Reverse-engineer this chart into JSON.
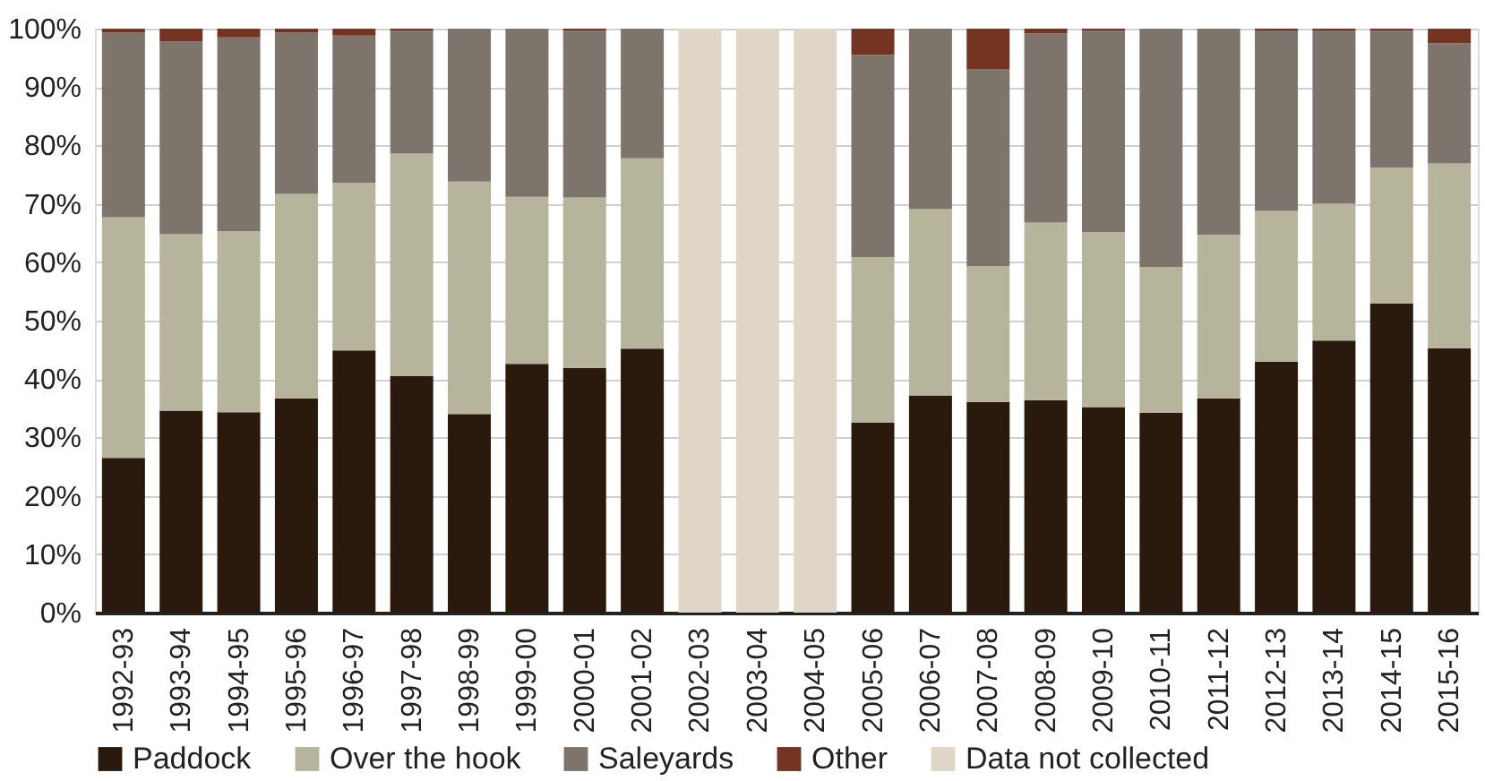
{
  "chart_data": {
    "type": "bar",
    "stacked": true,
    "categories": [
      "1992-93",
      "1993-94",
      "1994-95",
      "1995-96",
      "1996-97",
      "1997-98",
      "1998-99",
      "1999-00",
      "2000-01",
      "2001-02",
      "2002-03",
      "2003-04",
      "2004-05",
      "2005-06",
      "2006-07",
      "2007-08",
      "2008-09",
      "2009-10",
      "2010-11",
      "2011-12",
      "2012-13",
      "2013-14",
      "2014-15",
      "2015-16"
    ],
    "series": [
      {
        "name": "Paddock",
        "color": "#2a1a0e",
        "values": [
          26.5,
          34.6,
          34.3,
          36.7,
          44.9,
          40.5,
          34.0,
          42.6,
          41.9,
          45.2,
          null,
          null,
          null,
          32.5,
          37.2,
          36.1,
          36.4,
          35.2,
          34.2,
          36.7,
          43.0,
          46.6,
          52.9,
          45.3
        ]
      },
      {
        "name": "Over the hook",
        "color": "#b7b49c",
        "values": [
          41.2,
          30.2,
          31.0,
          35.0,
          28.7,
          38.1,
          39.8,
          28.6,
          29.2,
          32.6,
          null,
          null,
          null,
          28.4,
          31.9,
          23.2,
          30.4,
          30.0,
          25.0,
          28.0,
          25.8,
          23.4,
          23.3,
          31.6
        ]
      },
      {
        "name": "Saleyards",
        "color": "#7d756b",
        "values": [
          31.6,
          33.0,
          33.2,
          27.6,
          25.2,
          21.0,
          26.2,
          28.8,
          28.5,
          22.2,
          null,
          null,
          null,
          34.6,
          30.9,
          33.8,
          32.4,
          34.4,
          40.8,
          35.3,
          30.9,
          29.7,
          23.4,
          20.6
        ]
      },
      {
        "name": "Other",
        "color": "#733521",
        "values": [
          0.7,
          2.2,
          1.5,
          0.7,
          1.2,
          0.4,
          0,
          0,
          0.4,
          0,
          null,
          null,
          null,
          4.5,
          0,
          6.9,
          0.8,
          0.4,
          0,
          0,
          0.3,
          0.3,
          0.4,
          2.5
        ]
      },
      {
        "name": "Data not collected",
        "color": "#e0d6c8",
        "values": [
          null,
          null,
          null,
          null,
          null,
          null,
          null,
          null,
          null,
          null,
          100,
          100,
          100,
          null,
          null,
          null,
          null,
          null,
          null,
          null,
          null,
          null,
          null,
          null
        ]
      }
    ],
    "ylim": [
      0,
      100
    ],
    "yticks": [
      {
        "value": 0,
        "label": "0%"
      },
      {
        "value": 10,
        "label": "10%"
      },
      {
        "value": 20,
        "label": "20%"
      },
      {
        "value": 30,
        "label": "30%"
      },
      {
        "value": 40,
        "label": "40%"
      },
      {
        "value": 50,
        "label": "50%"
      },
      {
        "value": 60,
        "label": "60%"
      },
      {
        "value": 70,
        "label": "70%"
      },
      {
        "value": 80,
        "label": "80%"
      },
      {
        "value": 90,
        "label": "90%"
      },
      {
        "value": 100,
        "label": "100%"
      }
    ],
    "grid": "y",
    "legend": "bottom"
  }
}
